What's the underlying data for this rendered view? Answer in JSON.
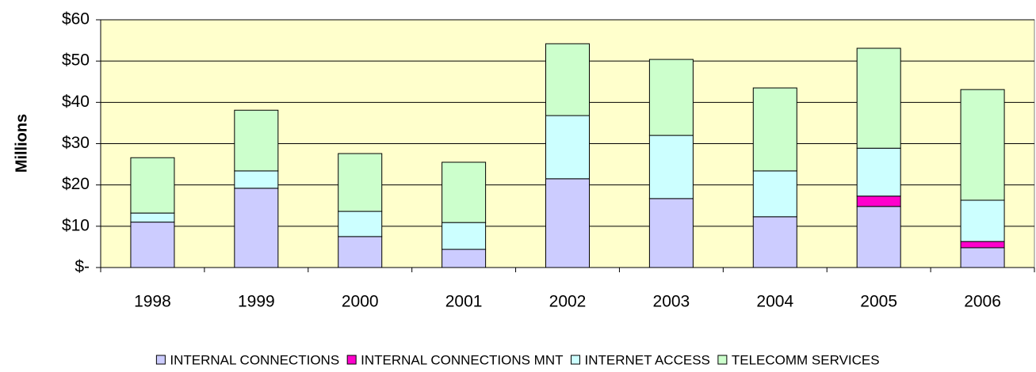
{
  "chart_data": {
    "type": "stacked_bar",
    "y_label": "Millions",
    "categories": [
      "1998",
      "1999",
      "2000",
      "2001",
      "2002",
      "2003",
      "2004",
      "2005",
      "2006"
    ],
    "series": [
      {
        "name": "INTERNAL CONNECTIONS",
        "color": "#ccccff",
        "values": [
          11,
          19.2,
          7.5,
          4.4,
          21.5,
          16.7,
          12.3,
          14.8,
          4.8
        ]
      },
      {
        "name": "INTERNAL CONNECTIONS MNT",
        "color": "#ff00cc",
        "values": [
          0,
          0,
          0,
          0,
          0,
          0,
          0,
          2.5,
          1.5
        ]
      },
      {
        "name": "INTERNET ACCESS",
        "color": "#ccffff",
        "values": [
          2.2,
          4.2,
          6.1,
          6.5,
          15.3,
          15.3,
          11.1,
          11.6,
          10
        ]
      },
      {
        "name": "TELECOMM SERVICES",
        "color": "#ccffcc",
        "values": [
          13.4,
          14.7,
          14,
          14.6,
          17.4,
          18.4,
          20.1,
          24.2,
          26.8
        ]
      }
    ],
    "ylim": [
      0,
      60
    ],
    "yticks": [
      {
        "value": 0,
        "label": "$-"
      },
      {
        "value": 10,
        "label": "$10"
      },
      {
        "value": 20,
        "label": "$20"
      },
      {
        "value": 30,
        "label": "$30"
      },
      {
        "value": 40,
        "label": "$40"
      },
      {
        "value": 50,
        "label": "$50"
      },
      {
        "value": 60,
        "label": "$60"
      }
    ],
    "grid": true,
    "background": "#ffffcc",
    "legend": "bottom"
  }
}
